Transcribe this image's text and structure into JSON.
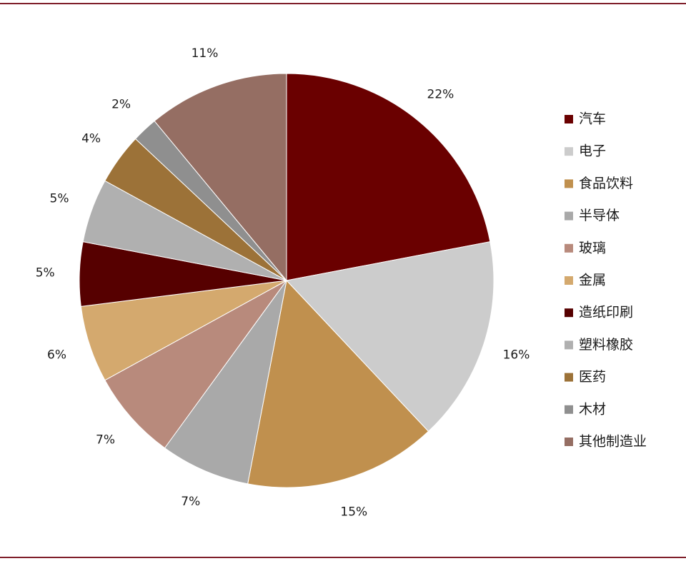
{
  "chart_data": {
    "type": "pie",
    "slices": [
      {
        "label": "汽车",
        "value": 22,
        "value_label": "22%",
        "color": "#6a0000"
      },
      {
        "label": "电子",
        "value": 16,
        "value_label": "16%",
        "color": "#cccccc"
      },
      {
        "label": "食品饮料",
        "value": 15,
        "value_label": "15%",
        "color": "#c0904e"
      },
      {
        "label": "半导体",
        "value": 7,
        "value_label": "7%",
        "color": "#a9a9a9"
      },
      {
        "label": "玻璃",
        "value": 7,
        "value_label": "7%",
        "color": "#b88a7c"
      },
      {
        "label": "金属",
        "value": 6,
        "value_label": "6%",
        "color": "#d4a96e"
      },
      {
        "label": "造纸印刷",
        "value": 5,
        "value_label": "5%",
        "color": "#560000"
      },
      {
        "label": "塑料橡胶",
        "value": 5,
        "value_label": "5%",
        "color": "#b0b0b0"
      },
      {
        "label": "医药",
        "value": 4,
        "value_label": "4%",
        "color": "#9c7238"
      },
      {
        "label": "木材",
        "value": 2,
        "value_label": "2%",
        "color": "#8f8f8f"
      },
      {
        "label": "其他制造业",
        "value": 11,
        "value_label": "11%",
        "color": "#956e63"
      }
    ],
    "legend_position": "right"
  }
}
